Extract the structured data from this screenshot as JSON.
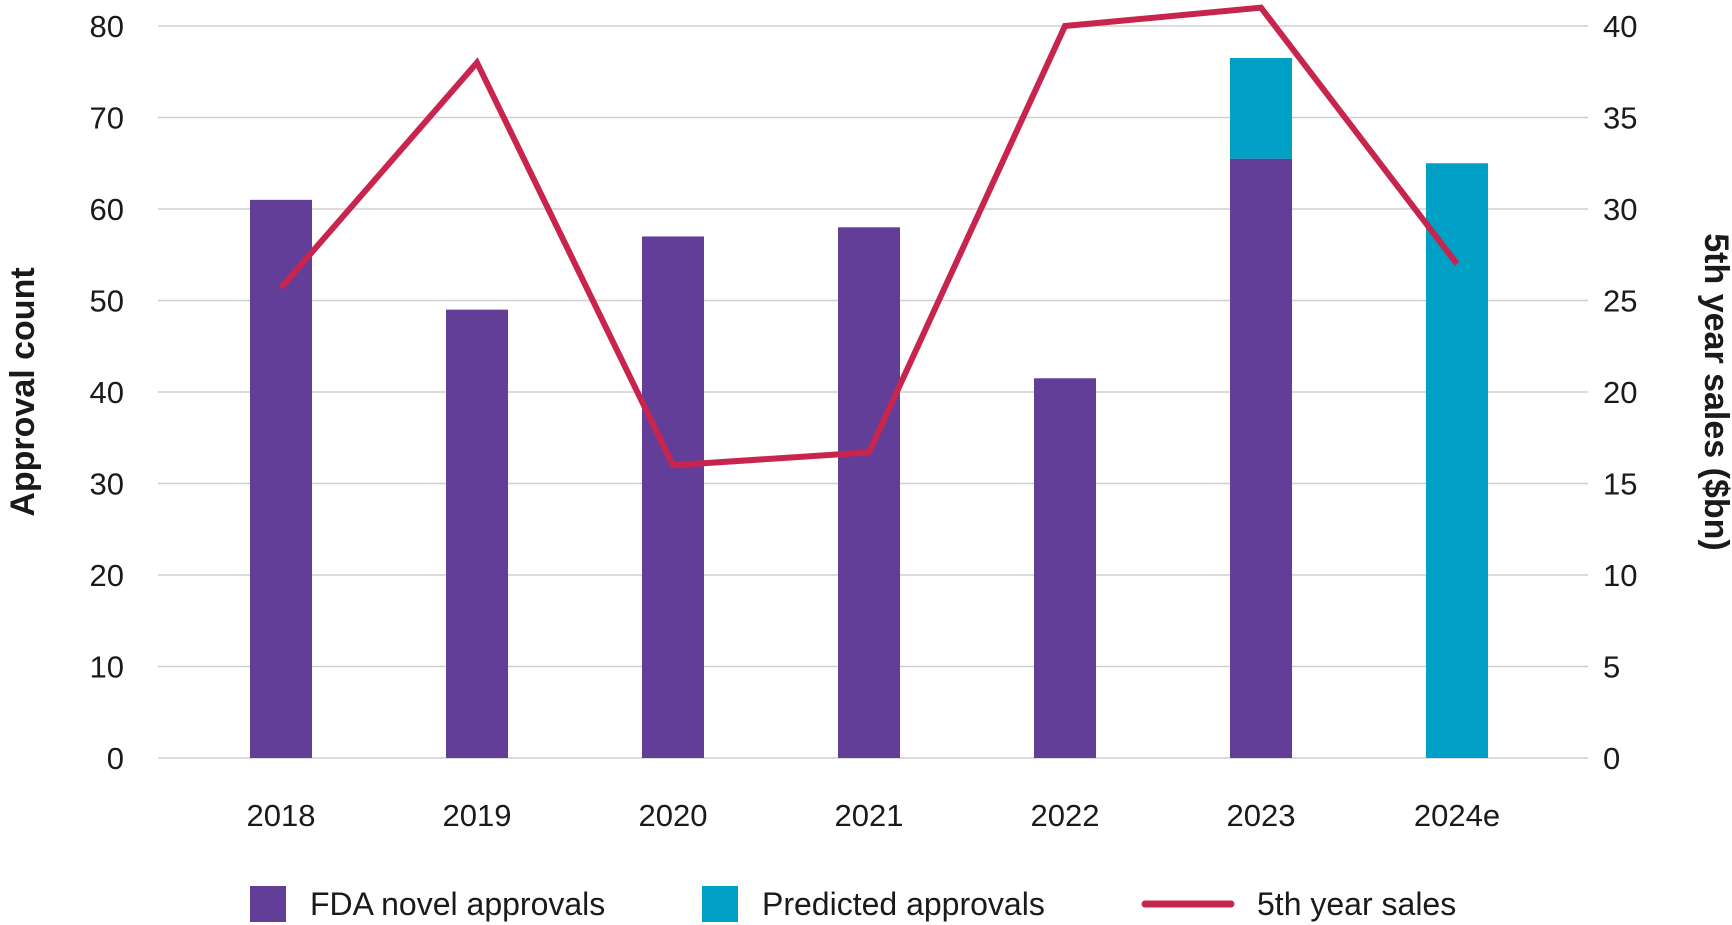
{
  "chart_data": {
    "type": "bar",
    "categories": [
      "2018",
      "2019",
      "2020",
      "2021",
      "2022",
      "2023",
      "2024e"
    ],
    "series": [
      {
        "name": "FDA novel approvals",
        "kind": "bar",
        "axis": "left",
        "color": "#623e98",
        "values": [
          61,
          49,
          57,
          58,
          41.5,
          65.5,
          0
        ]
      },
      {
        "name": "Predicted approvals",
        "kind": "bar",
        "axis": "left",
        "stacked": true,
        "color": "#009fc5",
        "values": [
          0,
          0,
          0,
          0,
          0,
          11,
          65
        ]
      },
      {
        "name": "5th year sales",
        "kind": "line",
        "axis": "right",
        "color": "#c8254e",
        "values": [
          25.7,
          38,
          16,
          16.7,
          40,
          41,
          27
        ]
      }
    ],
    "ylabel": "Approval count",
    "y2label": "5th year sales ($bn)",
    "ylim": [
      0,
      80
    ],
    "y2lim": [
      0,
      40
    ],
    "yticks": [
      "0",
      "10",
      "20",
      "30",
      "40",
      "50",
      "60",
      "70",
      "80"
    ],
    "y2ticks": [
      "0",
      "5",
      "10",
      "15",
      "20",
      "25",
      "30",
      "35",
      "40"
    ],
    "grid": true,
    "legend": "bottom"
  }
}
